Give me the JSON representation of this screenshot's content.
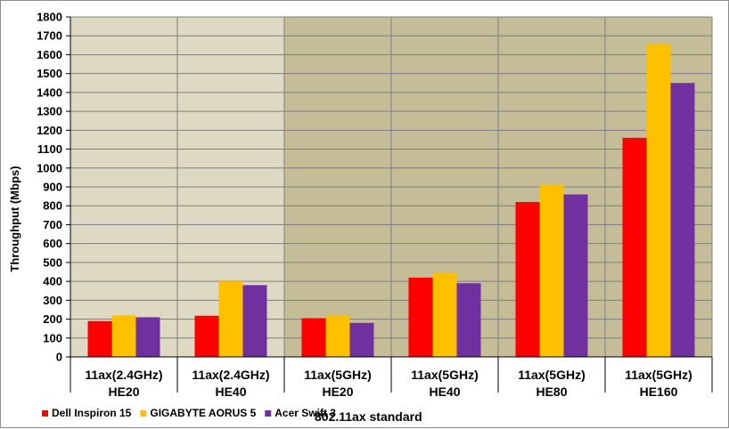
{
  "chart_data": {
    "type": "bar",
    "categories": [
      [
        "11ax(2.4GHz)",
        "HE20"
      ],
      [
        "11ax(2.4GHz)",
        "HE40"
      ],
      [
        "11ax(5GHz)",
        "HE20"
      ],
      [
        "11ax(5GHz)",
        "HE40"
      ],
      [
        "11ax(5GHz)",
        "HE80"
      ],
      [
        "11ax(5GHz)",
        "HE160"
      ]
    ],
    "series": [
      {
        "name": "Dell Inspiron 15",
        "color": "#ff0000",
        "values": [
          190,
          218,
          205,
          420,
          820,
          1160
        ]
      },
      {
        "name": "GIGABYTE AORUS 5",
        "color": "#ffc000",
        "values": [
          220,
          400,
          220,
          445,
          910,
          1655
        ]
      },
      {
        "name": "Acer Swift 3",
        "color": "#7030a0",
        "values": [
          210,
          380,
          180,
          390,
          860,
          1450
        ]
      }
    ],
    "ylabel": "Throughput (Mbps)",
    "xlabel": "802.11ax standard",
    "ylim": [
      0,
      1800
    ],
    "ytick_step": 100,
    "grid": true,
    "legend_position": "bottom-left",
    "band_colors": [
      "#ddd9c3",
      "#ddd9c3",
      "#c4bd97",
      "#c4bd97",
      "#c4bd97",
      "#c4bd97"
    ]
  }
}
